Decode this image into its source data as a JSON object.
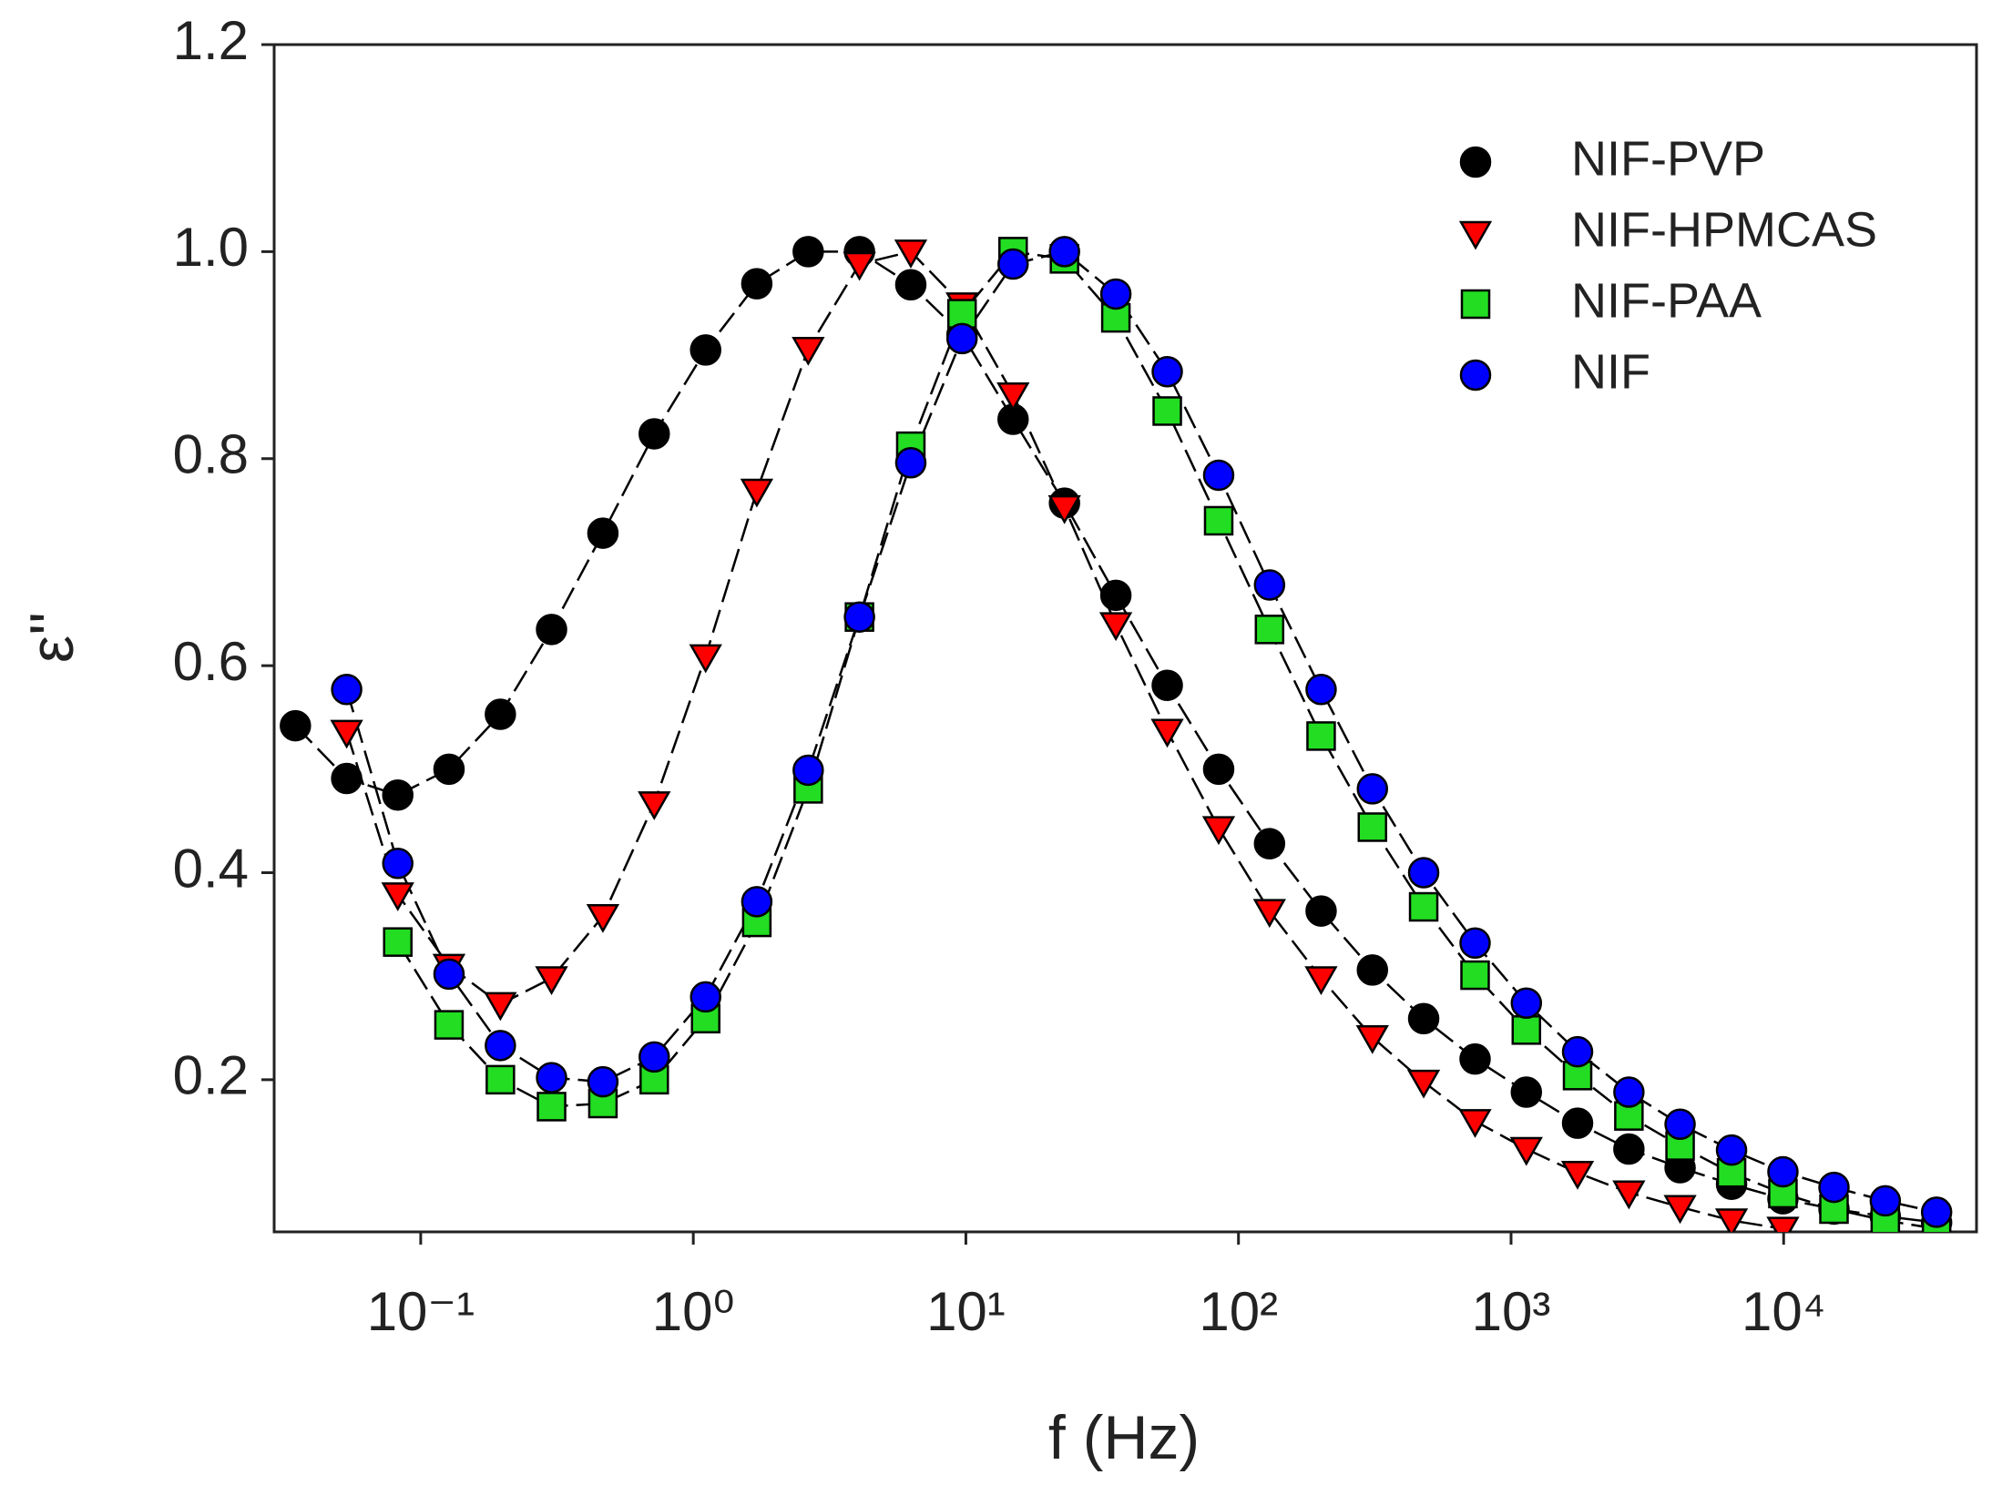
{
  "chart_data": {
    "type": "scatter",
    "x_label": "f (Hz)",
    "y_label": "ε''",
    "xscale": "log",
    "xlim": [
      0.029,
      51000
    ],
    "ylim": [
      0.053,
      1.2
    ],
    "xticks": [
      {
        "value": 0.1,
        "label": "10⁻¹"
      },
      {
        "value": 1,
        "label": "10⁰"
      },
      {
        "value": 10,
        "label": "10¹"
      },
      {
        "value": 100,
        "label": "10²"
      },
      {
        "value": 1000,
        "label": "10³"
      },
      {
        "value": 10000,
        "label": "10⁴"
      }
    ],
    "yticks": [
      0.2,
      0.4,
      0.6,
      0.8,
      {
        "value": 1,
        "label": "1.0"
      },
      1.2
    ],
    "legend": "upper right",
    "linestyle": "dashed",
    "x": [
      0.0347,
      0.0535,
      0.0824,
      0.127,
      0.196,
      0.302,
      0.466,
      0.719,
      1.11,
      1.71,
      2.64,
      4.07,
      6.28,
      9.68,
      14.9,
      23.0,
      35.5,
      54.8,
      84.6,
      130,
      201,
      310,
      478,
      738,
      1138,
      1754,
      2706,
      4170,
      6440,
      9940,
      15300,
      23600,
      36400
    ],
    "series": [
      {
        "name": "NIF-PVP",
        "color": "#000000",
        "marker": "circle",
        "values": [
          0.542,
          0.491,
          0.475,
          0.5,
          0.553,
          0.635,
          0.728,
          0.824,
          0.905,
          0.969,
          1.0,
          1.0,
          0.968,
          0.92,
          0.838,
          0.757,
          0.668,
          0.581,
          0.5,
          0.428,
          0.363,
          0.306,
          0.259,
          0.22,
          0.188,
          0.158,
          0.133,
          0.115,
          0.099,
          0.085,
          0.075,
          0.068,
          0.062
        ]
      },
      {
        "name": "NIF-HPMCAS",
        "color": "#ff0000",
        "marker": "triangle-down",
        "values": [
          null,
          0.536,
          0.379,
          0.31,
          0.273,
          0.298,
          0.358,
          0.467,
          0.609,
          0.769,
          0.906,
          0.988,
          1.0,
          0.949,
          0.862,
          0.753,
          0.64,
          0.537,
          0.443,
          0.363,
          0.298,
          0.241,
          0.198,
          0.16,
          0.133,
          0.11,
          0.091,
          0.077,
          0.064,
          0.056,
          null,
          null,
          null
        ]
      },
      {
        "name": "NIF-PAA",
        "color": "#22dd22",
        "marker": "square",
        "values": [
          null,
          null,
          0.333,
          0.253,
          0.2,
          0.174,
          0.177,
          0.2,
          0.259,
          0.352,
          0.481,
          0.647,
          0.812,
          0.94,
          1.0,
          0.993,
          0.936,
          0.846,
          0.74,
          0.635,
          0.532,
          0.444,
          0.367,
          0.301,
          0.248,
          0.204,
          0.165,
          0.136,
          0.11,
          0.09,
          0.075,
          0.064,
          0.056
        ]
      },
      {
        "name": "NIF",
        "color": "#0000ff",
        "marker": "circle",
        "values": [
          null,
          0.577,
          0.409,
          0.302,
          0.233,
          0.202,
          0.198,
          0.222,
          0.28,
          0.372,
          0.499,
          0.647,
          0.796,
          0.916,
          0.988,
          1.0,
          0.959,
          0.884,
          0.784,
          0.678,
          0.577,
          0.481,
          0.4,
          0.332,
          0.274,
          0.227,
          0.188,
          0.157,
          0.132,
          0.111,
          0.096,
          0.083,
          0.072
        ]
      }
    ]
  }
}
